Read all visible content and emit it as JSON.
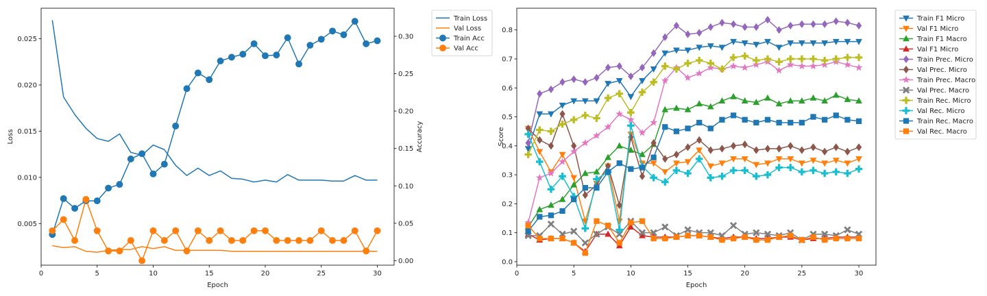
{
  "chart_data": [
    {
      "type": "line",
      "xlabel": "Epoch",
      "ylabel": "Loss",
      "ylabel_right": "Accuracy",
      "x": [
        1,
        2,
        3,
        4,
        5,
        6,
        7,
        8,
        9,
        10,
        11,
        12,
        13,
        14,
        15,
        16,
        17,
        18,
        19,
        20,
        21,
        22,
        23,
        24,
        25,
        26,
        27,
        28,
        29,
        30
      ],
      "xlim": [
        0,
        31.5
      ],
      "xticks": [
        0,
        5,
        10,
        15,
        20,
        25,
        30
      ],
      "ylim": [
        0.0005,
        0.0283
      ],
      "yticks": [
        0.005,
        0.01,
        0.015,
        0.02,
        0.025
      ],
      "ytick_labels": [
        "0.005",
        "0.010",
        "0.015",
        "0.020",
        "0.025"
      ],
      "ylim_right": [
        -0.006,
        0.3375
      ],
      "yticks_right": [
        0.0,
        0.05,
        0.1,
        0.15,
        0.2,
        0.25,
        0.3
      ],
      "ytick_labels_right": [
        "0.00",
        "0.05",
        "0.10",
        "0.15",
        "0.20",
        "0.25",
        "0.30"
      ],
      "legend_position": "outside-top-right",
      "series": [
        {
          "name": "Train Loss",
          "axis": "left",
          "marker": "none",
          "color": "#1f77b4",
          "values": [
            0.027,
            0.0187,
            0.0168,
            0.0153,
            0.0142,
            0.0139,
            0.0147,
            0.0127,
            0.0124,
            0.0135,
            0.013,
            0.0113,
            0.0102,
            0.011,
            0.0102,
            0.0107,
            0.0099,
            0.0098,
            0.0095,
            0.0097,
            0.0095,
            0.0103,
            0.0097,
            0.0097,
            0.0097,
            0.0096,
            0.0096,
            0.0102,
            0.0097,
            0.0097
          ]
        },
        {
          "name": "Val Loss",
          "axis": "left",
          "marker": "none",
          "color": "#ff7f0e",
          "values": [
            0.0026,
            0.0024,
            0.0025,
            0.002,
            0.0019,
            0.0021,
            0.0022,
            0.0022,
            0.0025,
            0.0023,
            0.0025,
            0.0021,
            0.0021,
            0.0021,
            0.0021,
            0.0021,
            0.002,
            0.002,
            0.002,
            0.002,
            0.002,
            0.002,
            0.002,
            0.002,
            0.002,
            0.002,
            0.002,
            0.002,
            0.002,
            0.002
          ]
        },
        {
          "name": "Train Acc",
          "axis": "right",
          "marker": "circle",
          "color": "#1f77b4",
          "values": [
            0.035,
            0.083,
            0.07,
            0.08,
            0.08,
            0.097,
            0.102,
            0.136,
            0.143,
            0.116,
            0.129,
            0.18,
            0.23,
            0.251,
            0.242,
            0.267,
            0.272,
            0.276,
            0.29,
            0.274,
            0.275,
            0.298,
            0.263,
            0.288,
            0.296,
            0.307,
            0.302,
            0.32,
            0.29,
            0.294
          ]
        },
        {
          "name": "Val Acc",
          "axis": "right",
          "marker": "circle",
          "color": "#ff7f0e",
          "values": [
            0.04,
            0.055,
            0.027,
            0.082,
            0.04,
            0.013,
            0.013,
            0.027,
            0.0,
            0.04,
            0.027,
            0.04,
            0.013,
            0.04,
            0.027,
            0.04,
            0.027,
            0.027,
            0.04,
            0.04,
            0.027,
            0.027,
            0.027,
            0.027,
            0.04,
            0.027,
            0.027,
            0.04,
            0.013,
            0.04
          ]
        }
      ]
    },
    {
      "type": "line",
      "xlabel": "Epoch",
      "ylabel": "Score",
      "x": [
        1,
        2,
        3,
        4,
        5,
        6,
        7,
        8,
        9,
        10,
        11,
        12,
        13,
        14,
        15,
        16,
        17,
        18,
        19,
        20,
        21,
        22,
        23,
        24,
        25,
        26,
        27,
        28,
        29,
        30
      ],
      "xlim": [
        0,
        31.5
      ],
      "xticks": [
        0,
        5,
        10,
        15,
        20,
        25,
        30
      ],
      "ylim": [
        -0.012,
        0.875
      ],
      "yticks": [
        0.0,
        0.1,
        0.2,
        0.3,
        0.4,
        0.5,
        0.6,
        0.7,
        0.8
      ],
      "ytick_labels": [
        "0.0",
        "0.1",
        "0.2",
        "0.3",
        "0.4",
        "0.5",
        "0.6",
        "0.7",
        "0.8"
      ],
      "legend_position": "outside-top-right",
      "series": [
        {
          "name": "Train F1 Micro",
          "marker": "triangle-down",
          "color": "#1f77b4",
          "values": [
            0.39,
            0.51,
            0.51,
            0.54,
            0.555,
            0.555,
            0.555,
            0.615,
            0.625,
            0.57,
            0.625,
            0.665,
            0.72,
            0.73,
            0.73,
            0.74,
            0.745,
            0.74,
            0.76,
            0.755,
            0.75,
            0.76,
            0.74,
            0.755,
            0.755,
            0.755,
            0.755,
            0.76,
            0.76,
            0.76
          ]
        },
        {
          "name": "Val F1 Micro",
          "marker": "triangle-down",
          "color": "#ff7f0e",
          "values": [
            0.46,
            0.38,
            0.31,
            0.37,
            0.29,
            0.14,
            0.27,
            0.33,
            0.14,
            0.44,
            0.34,
            0.34,
            0.31,
            0.34,
            0.345,
            0.385,
            0.33,
            0.34,
            0.355,
            0.355,
            0.335,
            0.34,
            0.355,
            0.355,
            0.34,
            0.35,
            0.34,
            0.35,
            0.34,
            0.355
          ]
        },
        {
          "name": "Train F1 Macro",
          "marker": "triangle-up",
          "color": "#2ca02c",
          "values": [
            0.12,
            0.18,
            0.195,
            0.215,
            0.265,
            0.305,
            0.31,
            0.36,
            0.4,
            0.385,
            0.37,
            0.405,
            0.525,
            0.53,
            0.525,
            0.545,
            0.535,
            0.555,
            0.57,
            0.555,
            0.55,
            0.565,
            0.545,
            0.555,
            0.555,
            0.565,
            0.555,
            0.575,
            0.56,
            0.555
          ]
        },
        {
          "name": "Val F1 Micro",
          "marker": "triangle-up",
          "color": "#d62728",
          "values": [
            0.095,
            0.075,
            0.08,
            0.08,
            0.065,
            0.035,
            0.095,
            0.095,
            0.055,
            0.12,
            0.09,
            0.085,
            0.085,
            0.085,
            0.09,
            0.09,
            0.085,
            0.08,
            0.085,
            0.085,
            0.08,
            0.08,
            0.085,
            0.085,
            0.075,
            0.08,
            0.08,
            0.085,
            0.085,
            0.085
          ]
        },
        {
          "name": "Train Prec. Micro",
          "marker": "diamond",
          "color": "#9467bd",
          "values": [
            0.41,
            0.58,
            0.595,
            0.62,
            0.63,
            0.62,
            0.635,
            0.67,
            0.675,
            0.64,
            0.67,
            0.72,
            0.775,
            0.815,
            0.785,
            0.79,
            0.81,
            0.825,
            0.82,
            0.81,
            0.81,
            0.835,
            0.8,
            0.815,
            0.82,
            0.82,
            0.82,
            0.83,
            0.825,
            0.815
          ]
        },
        {
          "name": "Val Prec. Micro",
          "marker": "diamond",
          "color": "#8c564b",
          "values": [
            0.46,
            0.42,
            0.4,
            0.51,
            0.4,
            0.23,
            0.265,
            0.33,
            0.195,
            0.43,
            0.295,
            0.41,
            0.355,
            0.37,
            0.395,
            0.42,
            0.385,
            0.39,
            0.4,
            0.405,
            0.385,
            0.39,
            0.39,
            0.4,
            0.385,
            0.395,
            0.38,
            0.395,
            0.38,
            0.395
          ]
        },
        {
          "name": "Train Prec. Macro",
          "marker": "star",
          "color": "#e377c2",
          "values": [
            0.135,
            0.29,
            0.305,
            0.345,
            0.38,
            0.41,
            0.435,
            0.465,
            0.51,
            0.49,
            0.445,
            0.48,
            0.625,
            0.67,
            0.635,
            0.65,
            0.67,
            0.665,
            0.675,
            0.67,
            0.68,
            0.69,
            0.66,
            0.68,
            0.675,
            0.675,
            0.68,
            0.69,
            0.68,
            0.67
          ]
        },
        {
          "name": "Val Prec. Macro",
          "marker": "x",
          "color": "#7f7f7f",
          "values": [
            0.09,
            0.09,
            0.13,
            0.095,
            0.105,
            0.065,
            0.095,
            0.12,
            0.095,
            0.14,
            0.1,
            0.1,
            0.12,
            0.09,
            0.11,
            0.1,
            0.1,
            0.09,
            0.125,
            0.095,
            0.1,
            0.095,
            0.09,
            0.1,
            0.075,
            0.095,
            0.095,
            0.09,
            0.11,
            0.095
          ]
        },
        {
          "name": "Train Rec. Micro",
          "marker": "plus",
          "color": "#bcbd22",
          "values": [
            0.37,
            0.455,
            0.45,
            0.475,
            0.49,
            0.505,
            0.495,
            0.565,
            0.58,
            0.515,
            0.585,
            0.62,
            0.675,
            0.665,
            0.685,
            0.695,
            0.685,
            0.665,
            0.705,
            0.71,
            0.695,
            0.7,
            0.69,
            0.7,
            0.7,
            0.7,
            0.695,
            0.7,
            0.705,
            0.705
          ]
        },
        {
          "name": "Val Rec. Micro",
          "marker": "plus",
          "color": "#17becf",
          "values": [
            0.44,
            0.345,
            0.25,
            0.295,
            0.225,
            0.115,
            0.285,
            0.31,
            0.11,
            0.47,
            0.33,
            0.29,
            0.275,
            0.315,
            0.305,
            0.355,
            0.29,
            0.295,
            0.315,
            0.315,
            0.295,
            0.3,
            0.325,
            0.325,
            0.31,
            0.315,
            0.305,
            0.31,
            0.305,
            0.32
          ]
        },
        {
          "name": "Train Rec. Macro",
          "marker": "square",
          "color": "#1f77b4",
          "values": [
            0.105,
            0.155,
            0.16,
            0.175,
            0.215,
            0.255,
            0.255,
            0.31,
            0.34,
            0.32,
            0.325,
            0.36,
            0.465,
            0.45,
            0.46,
            0.48,
            0.46,
            0.49,
            0.505,
            0.49,
            0.48,
            0.49,
            0.48,
            0.48,
            0.48,
            0.5,
            0.49,
            0.505,
            0.49,
            0.485
          ]
        },
        {
          "name": "Val Rec. Macro",
          "marker": "square",
          "color": "#ff7f0e",
          "values": [
            0.125,
            0.08,
            0.08,
            0.08,
            0.065,
            0.03,
            0.14,
            0.125,
            0.065,
            0.135,
            0.14,
            0.08,
            0.08,
            0.085,
            0.09,
            0.09,
            0.085,
            0.075,
            0.08,
            0.085,
            0.075,
            0.075,
            0.085,
            0.09,
            0.075,
            0.085,
            0.075,
            0.08,
            0.08,
            0.08
          ]
        }
      ]
    }
  ]
}
